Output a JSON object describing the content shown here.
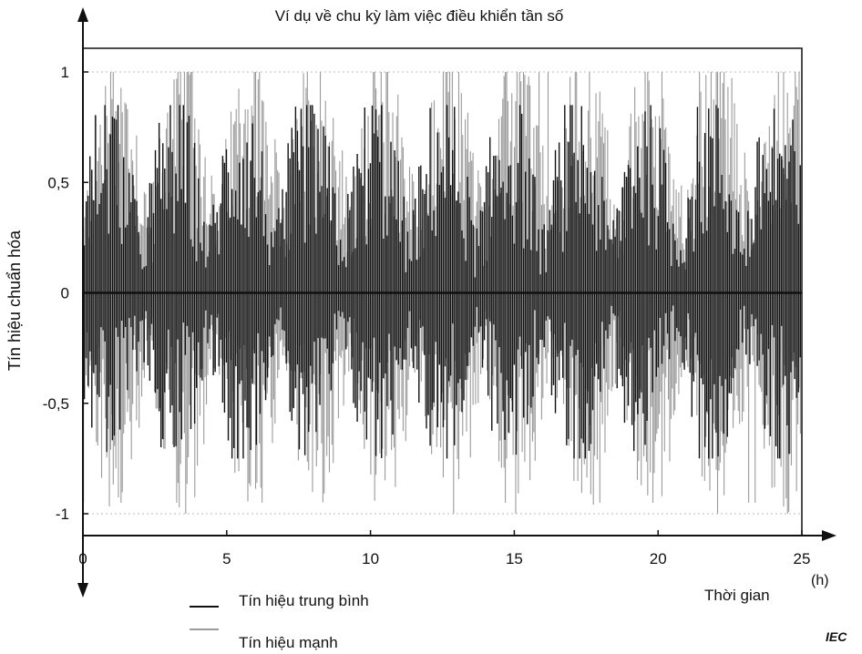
{
  "chart_data": {
    "type": "line",
    "title": "Ví dụ về chu kỳ làm việc điều khiển tần số",
    "xlabel": "Thời gian",
    "xunit": "(h)",
    "ylabel": "Tín hiệu chuẩn hóa",
    "xlim": [
      0,
      25
    ],
    "ylim": [
      -1,
      1
    ],
    "x_ticks": [
      "0",
      "5",
      "10",
      "15",
      "20",
      "25"
    ],
    "y_ticks": [
      "1",
      "0,5",
      "0",
      "-0,5",
      "-1"
    ],
    "grid": false,
    "legend_position": "bottom-left",
    "series": [
      {
        "name": "Tín hiệu trung bình",
        "color": "#111111",
        "approx_range": [
          -0.75,
          0.85
        ]
      },
      {
        "name": "Tín hiệu mạnh",
        "color": "#9a9a9a",
        "approx_range": [
          -1,
          1
        ]
      }
    ]
  },
  "credit": "IEC"
}
